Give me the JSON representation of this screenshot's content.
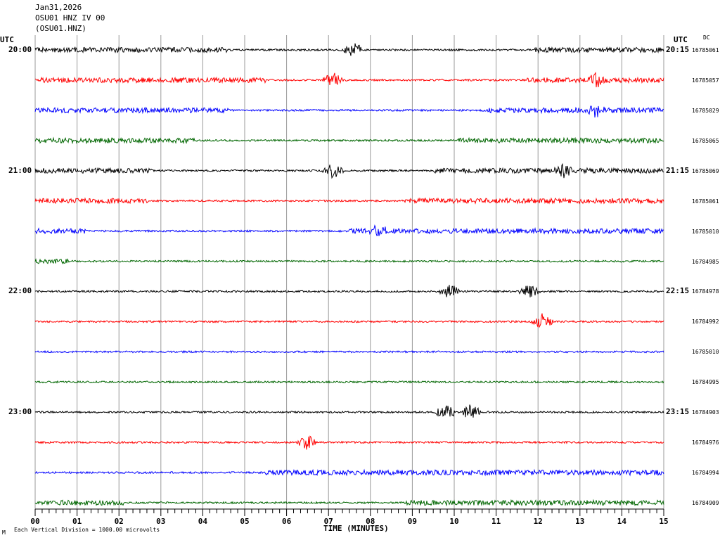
{
  "header": {
    "date": "Jan31,2026",
    "station": "OSU01 HNZ IV 00",
    "channel": "(OSU01.HNZ)"
  },
  "left_utc_label": "UTC",
  "right_utc_label": "UTC",
  "dc_label": "DC",
  "footer_note": "Each Vertical Division = 1000.00 microvolts",
  "footer_mark": "M",
  "chart_data": {
    "type": "line",
    "title": "",
    "xlabel": "TIME (MINUTES)",
    "ylabel": "",
    "x_range": [
      0,
      15
    ],
    "x_ticks": [
      "00",
      "01",
      "02",
      "03",
      "04",
      "05",
      "06",
      "07",
      "08",
      "09",
      "10",
      "11",
      "12",
      "13",
      "14",
      "15"
    ],
    "grid": "vertical lines each minute",
    "trace_colors": [
      "#000000",
      "#ff0000",
      "#0000ff",
      "#006600"
    ],
    "left_time_labels": [
      "20:00",
      "",
      "",
      "",
      "21:00",
      "",
      "",
      "",
      "22:00",
      "",
      "",
      "",
      "23:00",
      "",
      "",
      ""
    ],
    "right_time_labels": [
      "20:15",
      "",
      "",
      "",
      "21:15",
      "",
      "",
      "",
      "22:15",
      "",
      "",
      "",
      "23:15",
      "",
      "",
      ""
    ],
    "dc_offsets": [
      "16785061",
      "16785057",
      "16785029",
      "16785065",
      "16785069",
      "16785061",
      "16785010",
      "16784985",
      "16784978",
      "16784992",
      "16785010",
      "16784995",
      "16784903",
      "16784976",
      "16784994",
      "16784909"
    ]
  }
}
